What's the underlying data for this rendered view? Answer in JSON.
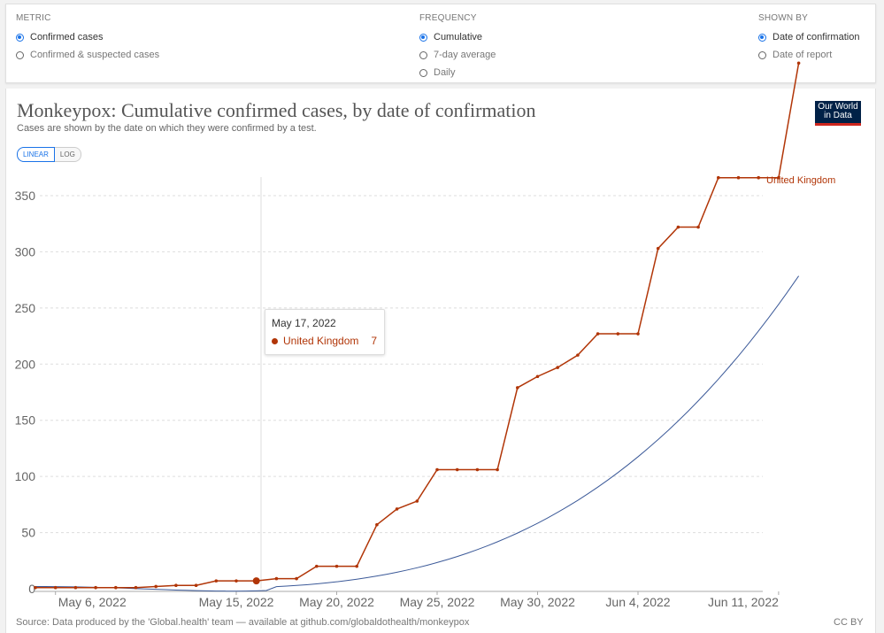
{
  "controls": {
    "metric": {
      "label": "METRIC",
      "options": [
        {
          "label": "Confirmed cases",
          "selected": true
        },
        {
          "label": "Confirmed & suspected cases",
          "selected": false
        }
      ]
    },
    "frequency": {
      "label": "FREQUENCY",
      "options": [
        {
          "label": "Cumulative",
          "selected": true
        },
        {
          "label": "7-day average",
          "selected": false
        },
        {
          "label": "Daily",
          "selected": false
        }
      ]
    },
    "shown_by": {
      "label": "SHOWN BY",
      "options": [
        {
          "label": "Date of confirmation",
          "selected": true
        },
        {
          "label": "Date of report",
          "selected": false
        }
      ]
    }
  },
  "header": {
    "title": "Monkeypox: Cumulative confirmed cases, by date of confirmation",
    "subtitle": "Cases are shown by the date on which they were confirmed by a test.",
    "logo_line1": "Our World",
    "logo_line2": "in Data"
  },
  "scale": {
    "linear": "LINEAR",
    "log": "LOG",
    "active": "linear"
  },
  "tooltip": {
    "date": "May 17, 2022",
    "series": "United Kingdom",
    "value": "7"
  },
  "footer": {
    "source": "Source: Data produced by the 'Global.health' team — available at github.com/globaldothealth/monkeypox",
    "license": "CC BY"
  },
  "colors": {
    "series": "#b13507",
    "trend": "#3b5998",
    "accent": "#1a73e8"
  },
  "chart_data": {
    "type": "line",
    "title": "Monkeypox: Cumulative confirmed cases, by date of confirmation",
    "xlabel": "",
    "ylabel": "",
    "ylim": [
      0,
      350
    ],
    "grid": true,
    "y_ticks": [
      0,
      50,
      100,
      150,
      200,
      250,
      300,
      350
    ],
    "x_tick_labels": [
      "May 6, 2022",
      "May 15, 2022",
      "May 20, 2022",
      "May 25, 2022",
      "May 30, 2022",
      "Jun 4, 2022",
      "Jun 11, 2022"
    ],
    "x_tick_days": [
      1,
      10,
      15,
      20,
      25,
      30,
      37
    ],
    "x_start": "May 5, 2022",
    "series": [
      {
        "name": "United Kingdom",
        "x_days": [
          0,
          1,
          2,
          3,
          4,
          5,
          6,
          7,
          8,
          9,
          10,
          11,
          12,
          13,
          14,
          15,
          16,
          17,
          18,
          19,
          20,
          21,
          22,
          23,
          24,
          25,
          26,
          27,
          28,
          29,
          30,
          31,
          32,
          33,
          34,
          35,
          36,
          37,
          38
        ],
        "values": [
          1,
          1,
          1,
          1,
          1,
          1,
          2,
          3,
          3,
          7,
          7,
          7,
          9,
          9,
          20,
          20,
          20,
          57,
          71,
          78,
          106,
          106,
          106,
          106,
          179,
          189,
          197,
          208,
          227,
          227,
          227,
          303,
          322,
          322,
          366,
          366,
          366,
          366,
          468
        ]
      }
    ],
    "highlight": {
      "date": "May 17, 2022",
      "series": "United Kingdom",
      "value": 7
    }
  }
}
